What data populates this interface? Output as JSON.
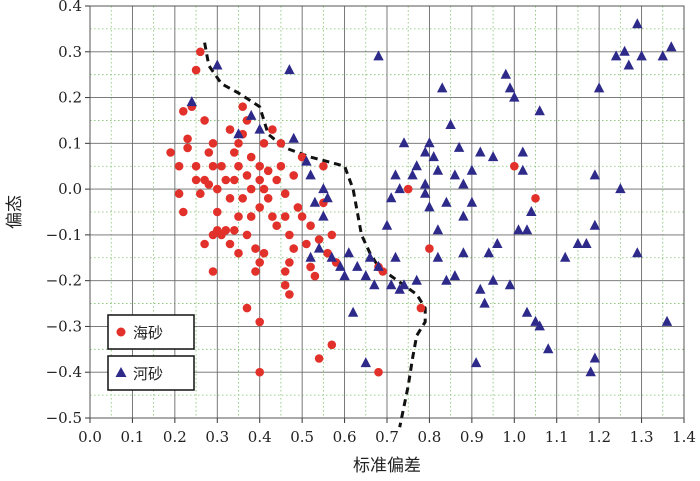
{
  "chart_data": {
    "type": "scatter",
    "xlabel": "标准偏差",
    "ylabel": "偏态",
    "xlim": [
      0.0,
      1.4
    ],
    "ylim": [
      -0.5,
      0.4
    ],
    "x_ticks": [
      "0.0",
      "0.1",
      "0.2",
      "0.3",
      "0.4",
      "0.5",
      "0.6",
      "0.7",
      "0.8",
      "0.9",
      "1.0",
      "1.1",
      "1.2",
      "1.3",
      "1.4"
    ],
    "y_ticks": [
      "0.4",
      "0.3",
      "0.2",
      "0.1",
      "0.0",
      "−0.1",
      "−0.2",
      "−0.3",
      "−0.4",
      "−0.5"
    ],
    "grid": true,
    "legend_position": "bottom-left",
    "series": [
      {
        "name": "海砂",
        "marker": "circle",
        "color": "#e2302b",
        "points": [
          [
            0.26,
            0.3
          ],
          [
            0.25,
            0.26
          ],
          [
            0.24,
            0.18
          ],
          [
            0.22,
            0.17
          ],
          [
            0.19,
            0.08
          ],
          [
            0.21,
            0.05
          ],
          [
            0.23,
            0.09
          ],
          [
            0.23,
            0.11
          ],
          [
            0.25,
            0.05
          ],
          [
            0.25,
            0.02
          ],
          [
            0.21,
            -0.01
          ],
          [
            0.22,
            -0.05
          ],
          [
            0.27,
            0.02
          ],
          [
            0.26,
            -0.01
          ],
          [
            0.28,
            0.01
          ],
          [
            0.28,
            0.08
          ],
          [
            0.27,
            0.15
          ],
          [
            0.29,
            0.1
          ],
          [
            0.29,
            0.05
          ],
          [
            0.3,
            -0.05
          ],
          [
            0.3,
            -0.09
          ],
          [
            0.29,
            -0.1
          ],
          [
            0.29,
            -0.18
          ],
          [
            0.27,
            -0.12
          ],
          [
            0.31,
            0.05
          ],
          [
            0.32,
            0.02
          ],
          [
            0.33,
            -0.02
          ],
          [
            0.34,
            0.08
          ],
          [
            0.33,
            0.13
          ],
          [
            0.34,
            0.02
          ],
          [
            0.35,
            0.05
          ],
          [
            0.36,
            0.18
          ],
          [
            0.36,
            0.12
          ],
          [
            0.37,
            0.15
          ],
          [
            0.37,
            0.03
          ],
          [
            0.38,
            0.07
          ],
          [
            0.38,
            0.0
          ],
          [
            0.36,
            -0.02
          ],
          [
            0.35,
            -0.06
          ],
          [
            0.34,
            -0.09
          ],
          [
            0.32,
            -0.09
          ],
          [
            0.31,
            -0.1
          ],
          [
            0.33,
            -0.12
          ],
          [
            0.35,
            -0.14
          ],
          [
            0.37,
            -0.1
          ],
          [
            0.38,
            -0.06
          ],
          [
            0.39,
            -0.13
          ],
          [
            0.4,
            -0.16
          ],
          [
            0.41,
            -0.14
          ],
          [
            0.39,
            -0.18
          ],
          [
            0.4,
            -0.04
          ],
          [
            0.41,
            0.0
          ],
          [
            0.4,
            0.05
          ],
          [
            0.41,
            0.1
          ],
          [
            0.43,
            0.13
          ],
          [
            0.42,
            0.04
          ],
          [
            0.42,
            -0.02
          ],
          [
            0.43,
            -0.06
          ],
          [
            0.44,
            -0.08
          ],
          [
            0.44,
            0.02
          ],
          [
            0.45,
            0.05
          ],
          [
            0.46,
            -0.01
          ],
          [
            0.46,
            -0.06
          ],
          [
            0.47,
            -0.1
          ],
          [
            0.47,
            -0.16
          ],
          [
            0.46,
            -0.18
          ],
          [
            0.46,
            -0.21
          ],
          [
            0.48,
            -0.13
          ],
          [
            0.48,
            0.03
          ],
          [
            0.5,
            0.07
          ],
          [
            0.49,
            -0.04
          ],
          [
            0.5,
            -0.06
          ],
          [
            0.51,
            -0.12
          ],
          [
            0.52,
            -0.08
          ],
          [
            0.52,
            -0.17
          ],
          [
            0.53,
            -0.19
          ],
          [
            0.54,
            -0.11
          ],
          [
            0.55,
            -0.03
          ],
          [
            0.56,
            -0.14
          ],
          [
            0.57,
            -0.1
          ],
          [
            0.58,
            -0.16
          ],
          [
            0.55,
            0.05
          ],
          [
            0.47,
            -0.23
          ],
          [
            0.37,
            -0.26
          ],
          [
            0.4,
            -0.29
          ],
          [
            0.57,
            -0.34
          ],
          [
            0.54,
            -0.37
          ],
          [
            0.4,
            -0.4
          ],
          [
            0.68,
            -0.4
          ],
          [
            0.68,
            -0.17
          ],
          [
            0.69,
            -0.18
          ],
          [
            0.75,
            0.0
          ],
          [
            0.78,
            -0.26
          ],
          [
            0.8,
            -0.13
          ],
          [
            1.0,
            0.05
          ],
          [
            1.05,
            -0.02
          ],
          [
            0.4,
            0.02
          ],
          [
            0.45,
            0.1
          ],
          [
            0.35,
            0.1
          ],
          [
            0.3,
            0.0
          ]
        ]
      },
      {
        "name": "河砂",
        "marker": "triangle",
        "color": "#2e2a8a",
        "points": [
          [
            0.3,
            0.27
          ],
          [
            0.24,
            0.19
          ],
          [
            0.35,
            0.12
          ],
          [
            0.38,
            0.16
          ],
          [
            0.4,
            0.13
          ],
          [
            0.47,
            0.26
          ],
          [
            0.48,
            0.11
          ],
          [
            0.51,
            0.06
          ],
          [
            0.52,
            0.03
          ],
          [
            0.55,
            0.0
          ],
          [
            0.56,
            -0.02
          ],
          [
            0.53,
            -0.03
          ],
          [
            0.55,
            -0.06
          ],
          [
            0.54,
            -0.13
          ],
          [
            0.52,
            -0.15
          ],
          [
            0.57,
            -0.15
          ],
          [
            0.59,
            -0.17
          ],
          [
            0.61,
            -0.14
          ],
          [
            0.63,
            -0.17
          ],
          [
            0.65,
            -0.19
          ],
          [
            0.67,
            -0.21
          ],
          [
            0.68,
            -0.17
          ],
          [
            0.71,
            -0.21
          ],
          [
            0.73,
            -0.22
          ],
          [
            0.72,
            -0.15
          ],
          [
            0.74,
            -0.21
          ],
          [
            0.77,
            -0.2
          ],
          [
            0.7,
            -0.08
          ],
          [
            0.71,
            -0.02
          ],
          [
            0.73,
            0.0
          ],
          [
            0.72,
            0.03
          ],
          [
            0.76,
            0.03
          ],
          [
            0.77,
            0.05
          ],
          [
            0.79,
            0.08
          ],
          [
            0.8,
            0.1
          ],
          [
            0.81,
            0.07
          ],
          [
            0.82,
            0.04
          ],
          [
            0.79,
            -0.01
          ],
          [
            0.8,
            -0.04
          ],
          [
            0.82,
            -0.09
          ],
          [
            0.82,
            -0.15
          ],
          [
            0.84,
            -0.2
          ],
          [
            0.86,
            -0.19
          ],
          [
            0.88,
            -0.14
          ],
          [
            0.88,
            -0.06
          ],
          [
            0.9,
            -0.03
          ],
          [
            0.88,
            0.01
          ],
          [
            0.9,
            0.04
          ],
          [
            0.92,
            0.08
          ],
          [
            0.95,
            0.07
          ],
          [
            0.98,
            0.25
          ],
          [
            0.99,
            0.22
          ],
          [
            1.0,
            0.2
          ],
          [
            1.02,
            0.08
          ],
          [
            1.02,
            0.04
          ],
          [
            1.03,
            -0.09
          ],
          [
            1.04,
            -0.05
          ],
          [
            1.06,
            0.17
          ],
          [
            1.01,
            -0.09
          ],
          [
            0.99,
            -0.21
          ],
          [
            1.05,
            -0.29
          ],
          [
            1.08,
            -0.35
          ],
          [
            1.12,
            -0.15
          ],
          [
            1.15,
            -0.12
          ],
          [
            1.17,
            -0.12
          ],
          [
            1.19,
            -0.08
          ],
          [
            1.19,
            0.03
          ],
          [
            1.2,
            0.22
          ],
          [
            1.19,
            -0.37
          ],
          [
            1.18,
            -0.4
          ],
          [
            1.24,
            0.29
          ],
          [
            1.26,
            0.3
          ],
          [
            1.27,
            0.27
          ],
          [
            1.29,
            0.36
          ],
          [
            1.3,
            0.29
          ],
          [
            1.25,
            0.0
          ],
          [
            1.29,
            -0.14
          ],
          [
            1.35,
            0.29
          ],
          [
            1.37,
            0.31
          ],
          [
            1.36,
            -0.29
          ],
          [
            0.91,
            -0.38
          ],
          [
            0.92,
            -0.22
          ],
          [
            0.93,
            -0.25
          ],
          [
            0.95,
            -0.2
          ],
          [
            0.96,
            -0.12
          ],
          [
            0.94,
            -0.14
          ],
          [
            0.86,
            0.03
          ],
          [
            0.84,
            -0.03
          ],
          [
            0.85,
            0.14
          ],
          [
            0.83,
            0.22
          ],
          [
            0.68,
            0.29
          ],
          [
            0.74,
            0.1
          ],
          [
            0.79,
            0.01
          ],
          [
            0.87,
            0.09
          ],
          [
            1.03,
            -0.27
          ],
          [
            1.06,
            -0.3
          ],
          [
            0.62,
            -0.27
          ],
          [
            0.65,
            -0.38
          ],
          [
            0.6,
            -0.19
          ],
          [
            0.66,
            -0.15
          ]
        ]
      },
      {
        "name": "",
        "marker": "dashed-line",
        "color": "#111111",
        "points": [
          [
            0.27,
            0.32
          ],
          [
            0.28,
            0.27
          ],
          [
            0.31,
            0.23
          ],
          [
            0.35,
            0.21
          ],
          [
            0.4,
            0.18
          ],
          [
            0.42,
            0.12
          ],
          [
            0.46,
            0.09
          ],
          [
            0.52,
            0.07
          ],
          [
            0.56,
            0.06
          ],
          [
            0.6,
            0.05
          ],
          [
            0.62,
            0.0
          ],
          [
            0.63,
            -0.05
          ],
          [
            0.64,
            -0.1
          ],
          [
            0.66,
            -0.14
          ],
          [
            0.68,
            -0.17
          ],
          [
            0.71,
            -0.19
          ],
          [
            0.74,
            -0.21
          ],
          [
            0.77,
            -0.23
          ],
          [
            0.79,
            -0.26
          ],
          [
            0.79,
            -0.29
          ],
          [
            0.77,
            -0.32
          ],
          [
            0.76,
            -0.37
          ],
          [
            0.75,
            -0.43
          ],
          [
            0.73,
            -0.52
          ]
        ]
      }
    ]
  }
}
